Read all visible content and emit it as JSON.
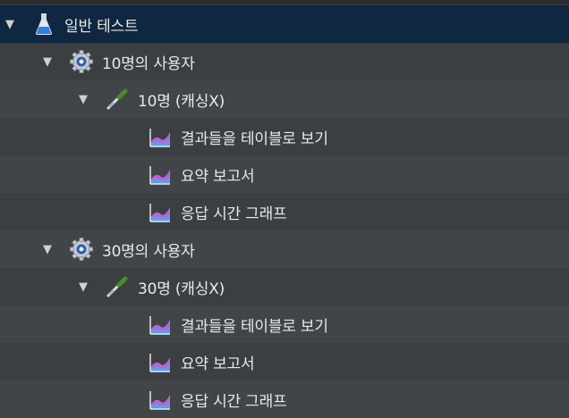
{
  "tree": {
    "root": {
      "label": "일반 테스트",
      "icon": "flask-icon"
    },
    "groups": [
      {
        "label": "10명의 사용자",
        "icon": "gear-icon",
        "sampler": {
          "label": "10명 (캐싱X)",
          "icon": "dropper-icon"
        },
        "listeners": [
          {
            "label": "결과들을 테이블로 보기",
            "icon": "listener-chart-icon"
          },
          {
            "label": "요약 보고서",
            "icon": "listener-chart-icon"
          },
          {
            "label": "응답 시간 그래프",
            "icon": "listener-chart-icon"
          }
        ]
      },
      {
        "label": "30명의 사용자",
        "icon": "gear-icon",
        "sampler": {
          "label": "30명 (캐싱X)",
          "icon": "dropper-icon"
        },
        "listeners": [
          {
            "label": "결과들을 테이블로 보기",
            "icon": "listener-chart-icon"
          },
          {
            "label": "요약 보고서",
            "icon": "listener-chart-icon"
          },
          {
            "label": "응답 시간 그래프",
            "icon": "listener-chart-icon"
          }
        ]
      }
    ]
  },
  "colors": {
    "background": "#3c3f41",
    "selected_row": "#0f2740",
    "text": "#e8e8e8"
  }
}
